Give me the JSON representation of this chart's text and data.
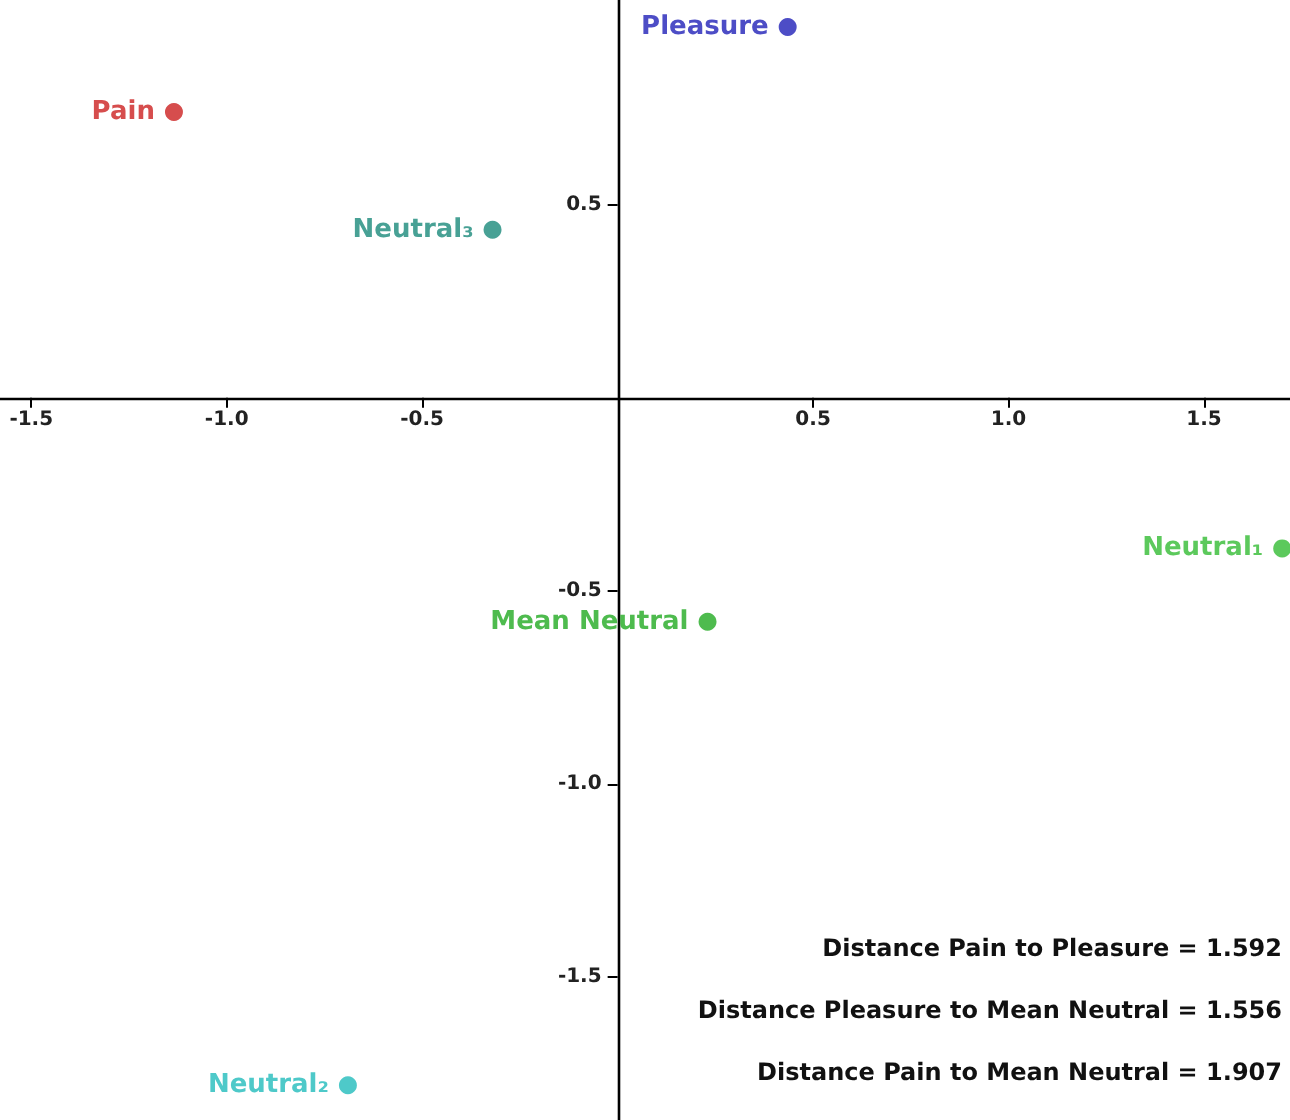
{
  "chart_data": {
    "type": "scatter",
    "marker": "circle",
    "grid": false,
    "legend": false,
    "xlim": [
      -1.58,
      1.72
    ],
    "ylim": [
      -1.87,
      1.03
    ],
    "xticks": [
      -1.5,
      {
        "value": -1,
        "label": "-1.0"
      },
      -0.5,
      {
        "value": 0,
        "label": null
      },
      0.5,
      {
        "value": 1,
        "label": "1.0"
      },
      1.5
    ],
    "yticks": [
      -1.5,
      {
        "value": -1,
        "label": "-1.0"
      },
      -0.5,
      {
        "value": 0,
        "label": null
      },
      0.5
    ],
    "series": [
      {
        "name": "Pleasure",
        "color": "#2020b8",
        "x": [
          0.435
        ],
        "values": [
          0.96
        ]
      },
      {
        "name": "Pain",
        "color": "#cc2020",
        "x": [
          -1.135
        ],
        "values": [
          0.74
        ]
      },
      {
        "name": "Neutral₃",
        "color": "#1a8a7a",
        "x": [
          -0.32
        ],
        "values": [
          0.435
        ]
      },
      {
        "name": "Neutral₁",
        "color": "#33bb33",
        "x": [
          1.7
        ],
        "values": [
          -0.39
        ]
      },
      {
        "name": "Mean Neutral",
        "color": "#22aa22",
        "x": [
          0.23
        ],
        "values": [
          -0.58
        ]
      },
      {
        "name": "Neutral₂",
        "color": "#22bbbb",
        "x": [
          -0.69
        ],
        "values": [
          -1.78
        ]
      }
    ],
    "annotations": [
      "Distance Pain to Pleasure = 1.592",
      "Distance Pleasure to Mean Neutral = 1.556",
      "Distance Pain to Mean Neutral = 1.907"
    ]
  }
}
